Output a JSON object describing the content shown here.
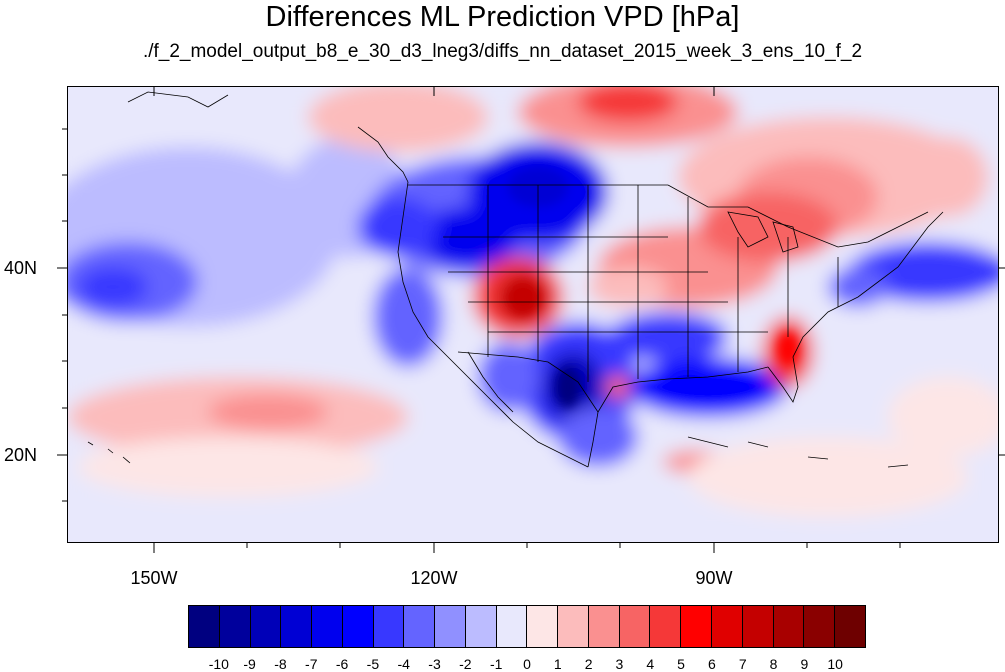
{
  "title": "Differences ML Prediction VPD [hPa]",
  "subtitle": "./f_2_model_output_b8_e_30_d3_lneg3/diffs_nn_dataset_2015_week_3_ens_10_f_2",
  "axes": {
    "lon_labels": [
      "150W",
      "120W",
      "90W"
    ],
    "lat_labels": [
      "40N",
      "20N"
    ]
  },
  "colorbar": {
    "labels": [
      "-10",
      "-9",
      "-8",
      "-7",
      "-6",
      "-5",
      "-4",
      "-3",
      "-2",
      "-1",
      "0",
      "1",
      "2",
      "3",
      "4",
      "5",
      "6",
      "7",
      "8",
      "9",
      "10"
    ],
    "colors": [
      "#000080",
      "#00009c",
      "#0000b8",
      "#0000d4",
      "#0000ee",
      "#0000ff",
      "#3838ff",
      "#6464ff",
      "#9090ff",
      "#bcbcff",
      "#e8e8fc",
      "#fde6e6",
      "#fcbcbc",
      "#fa9090",
      "#f76464",
      "#f53838",
      "#ff0000",
      "#e00000",
      "#c40000",
      "#a80000",
      "#8a0000",
      "#6e0000"
    ]
  },
  "map_data": {
    "variable": "VPD difference",
    "units": "hPa",
    "region_lon": [
      -160,
      -60
    ],
    "region_lat": [
      11,
      60
    ],
    "features": [
      {
        "name": "Four Corners",
        "sign": "positive",
        "peak": 8
      },
      {
        "name": "Great Lakes / Midwest",
        "sign": "positive",
        "peak": 4
      },
      {
        "name": "Canada north-central",
        "sign": "positive",
        "peak": 6
      },
      {
        "name": "Florida / Georgia",
        "sign": "positive",
        "peak": 6
      },
      {
        "name": "Texas / New Mexico",
        "sign": "negative",
        "peak": -9
      },
      {
        "name": "Gulf of Mexico",
        "sign": "negative",
        "peak": -6
      },
      {
        "name": "Pacific Northwest",
        "sign": "negative",
        "peak": -6
      },
      {
        "name": "Northeast Pacific",
        "sign": "negative",
        "peak": -5
      },
      {
        "name": "Central Pacific",
        "sign": "positive",
        "peak": 3
      }
    ]
  }
}
